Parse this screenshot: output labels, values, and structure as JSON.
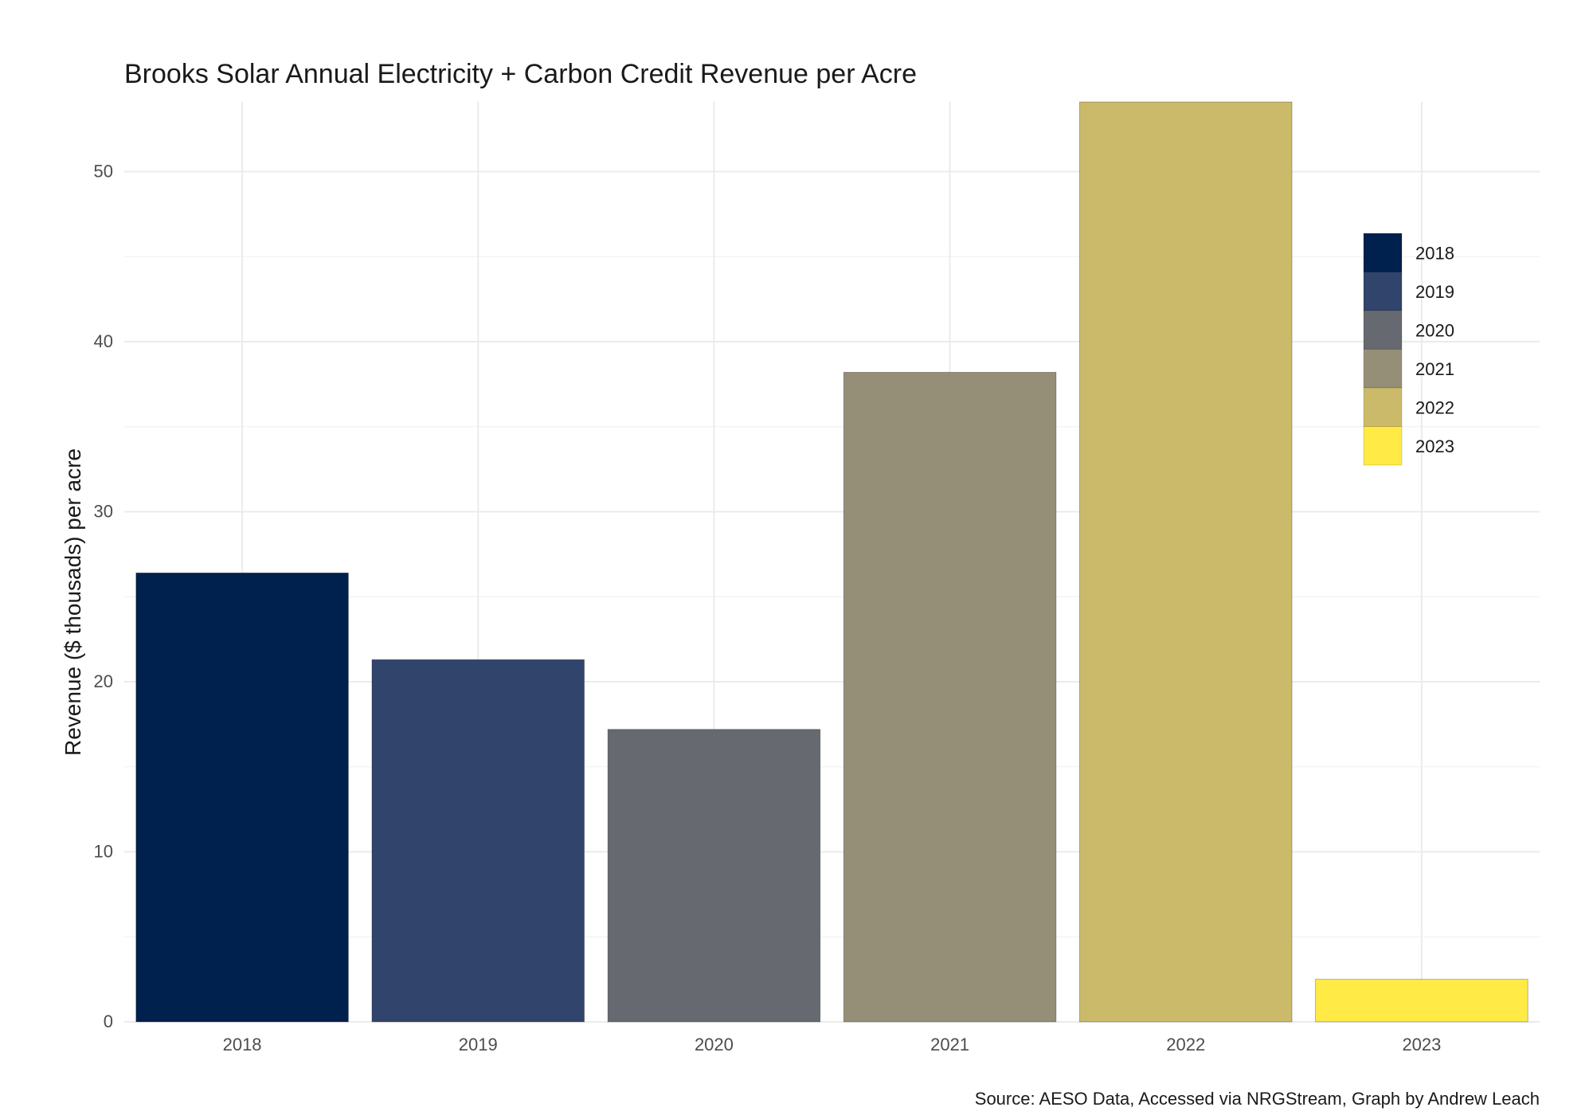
{
  "chart_data": {
    "type": "bar",
    "title": "Brooks Solar Annual Electricity + Carbon Credit Revenue per Acre",
    "xlabel": "",
    "ylabel": "Revenue ($ thousads) per acre",
    "caption": "Source: AESO Data, Accessed via NRGStream, Graph by Andrew Leach",
    "categories": [
      "2018",
      "2019",
      "2020",
      "2021",
      "2022",
      "2023"
    ],
    "values": [
      26.4,
      21.3,
      17.2,
      38.2,
      54.2,
      2.5
    ],
    "colors": [
      "#00204D",
      "#31446B",
      "#666970",
      "#958F78",
      "#CBBA69",
      "#FFEA46"
    ],
    "ylim": [
      0,
      54.1
    ],
    "yticks": [
      0,
      10,
      20,
      30,
      40,
      50
    ],
    "grid": true,
    "legend": {
      "position": "right-inside",
      "entries": [
        "2018",
        "2019",
        "2020",
        "2021",
        "2022",
        "2023"
      ]
    }
  }
}
